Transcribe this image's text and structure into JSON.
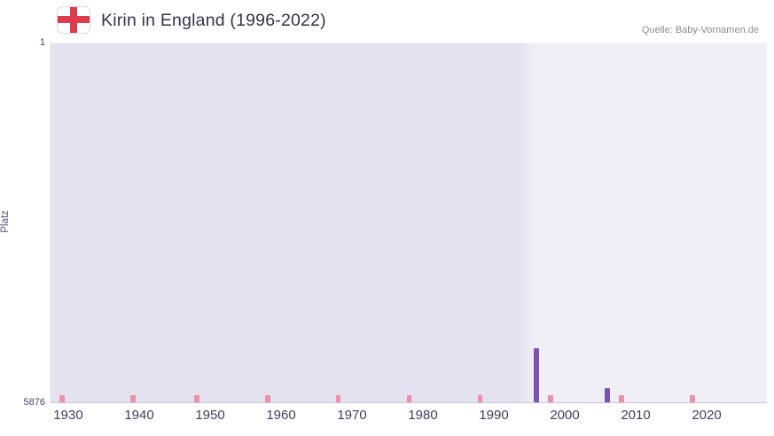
{
  "header": {
    "title": "Kirin in England (1996-2022)",
    "source": "Quelle: Baby-Vornamen.de",
    "flag": "england-flag"
  },
  "chart_data": {
    "type": "bar",
    "title": "Kirin in England (1996-2022)",
    "xlabel": "",
    "ylabel": "Platz",
    "y_min": 1,
    "y_max": 5876,
    "y_inverted": true,
    "y_ticks": [
      {
        "label": "1",
        "value": 1
      },
      {
        "label": "5876",
        "value": 5876
      }
    ],
    "x_start": 1928,
    "x_end": 2029,
    "x_ticks": [
      1930,
      1940,
      1950,
      1960,
      1970,
      1980,
      1990,
      2000,
      2010,
      2020
    ],
    "highlight_start": 1994,
    "bars": [
      {
        "year": 1996,
        "rank": 5000
      },
      {
        "year": 2006,
        "rank": 5650
      }
    ],
    "bottom_marks": [
      1929,
      1939,
      1948,
      1958,
      1968,
      1978,
      1988,
      1998,
      2008,
      2018
    ],
    "colors": {
      "bar": "#7d52b3",
      "mark": "#ef90a4",
      "plot_bg": "#e4e1f0",
      "highlight_bg": "rgba(255,255,255,0.45)",
      "axis": "#c9c5da",
      "flag_red": "#dd3c4c",
      "title_text": "#32324e"
    },
    "legend": null,
    "grid": true
  }
}
